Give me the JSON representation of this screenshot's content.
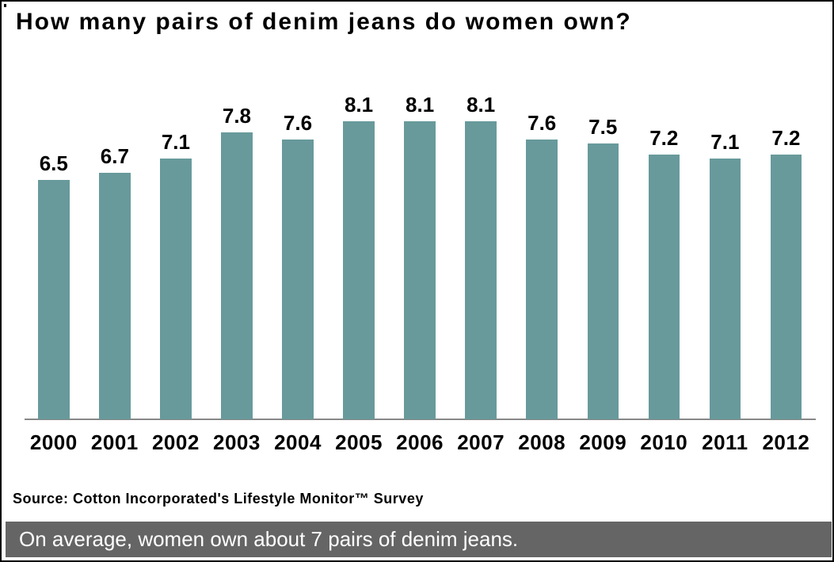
{
  "title": "How many pairs of denim jeans do women own?",
  "source_note": "Source: Cotton Incorporated's Lifestyle Monitor™ Survey",
  "caption": "On average, women own about 7 pairs of denim jeans.",
  "colors": {
    "bar": "#689a9b",
    "axis_line": "#888888",
    "background": "#ffffff",
    "title_text": "#000000",
    "caption_bg": "#656565",
    "caption_text": "#ffffff"
  },
  "chart_data": {
    "type": "bar",
    "title": "How many pairs of denim jeans do women own?",
    "categories": [
      "2000",
      "2001",
      "2002",
      "2003",
      "2004",
      "2005",
      "2006",
      "2007",
      "2008",
      "2009",
      "2010",
      "2011",
      "2012"
    ],
    "values": [
      6.5,
      6.7,
      7.1,
      7.8,
      7.6,
      8.1,
      8.1,
      8.1,
      7.6,
      7.5,
      7.2,
      7.1,
      7.2
    ],
    "xlabel": "",
    "ylabel": "",
    "ylim": [
      0,
      9
    ],
    "grid": false,
    "legend": false,
    "data_labels": true,
    "y_axis_visible": false,
    "x_axis_visible": true
  }
}
